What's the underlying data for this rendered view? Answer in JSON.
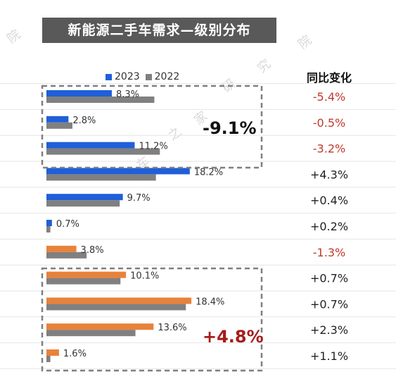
{
  "chart_data": {
    "type": "bar",
    "title": "新能源二手车需求—级别分布",
    "series": [
      {
        "name": "2023",
        "color": "#1f5fd9",
        "values": [
          8.3,
          2.8,
          11.2,
          18.2,
          9.7,
          0.7,
          3.8,
          10.1,
          18.4,
          13.6,
          1.6
        ]
      },
      {
        "name": "2022",
        "color": "#808080",
        "values": [
          13.7,
          3.3,
          14.4,
          13.9,
          9.3,
          0.5,
          5.1,
          9.4,
          17.7,
          11.3,
          0.5
        ]
      }
    ],
    "bar_colors_2023": [
      "#1f5fd9",
      "#1f5fd9",
      "#1f5fd9",
      "#1f5fd9",
      "#1f5fd9",
      "#1f5fd9",
      "#e8823a",
      "#e8823a",
      "#e8823a",
      "#e8823a",
      "#e8823a"
    ],
    "value_labels": [
      "8.3%",
      "2.8%",
      "11.2%",
      "18.2%",
      "9.7%",
      "0.7%",
      "3.8%",
      "10.1%",
      "18.4%",
      "13.6%",
      "1.6%"
    ],
    "yoy_header": "同比变化",
    "yoy": [
      {
        "text": "-5.4%",
        "color": "#c0392b"
      },
      {
        "text": "-0.5%",
        "color": "#c0392b"
      },
      {
        "text": "-3.2%",
        "color": "#c0392b"
      },
      {
        "text": "+4.3%",
        "color": "#222222"
      },
      {
        "text": "+0.4%",
        "color": "#222222"
      },
      {
        "text": "+0.2%",
        "color": "#222222"
      },
      {
        "text": "-1.3%",
        "color": "#c0392b"
      },
      {
        "text": "+0.7%",
        "color": "#222222"
      },
      {
        "text": "+0.7%",
        "color": "#222222"
      },
      {
        "text": "+2.3%",
        "color": "#222222"
      },
      {
        "text": "+1.1%",
        "color": "#222222"
      }
    ],
    "group_annotations": [
      {
        "text": "-9.1%",
        "color": "#111111",
        "rows": [
          0,
          2
        ]
      },
      {
        "text": "+4.8%",
        "color": "#a61c1c",
        "rows": [
          7,
          10
        ]
      }
    ],
    "watermark_chars": [
      "院",
      "研",
      "究",
      "院",
      "家",
      "之",
      "车"
    ]
  }
}
